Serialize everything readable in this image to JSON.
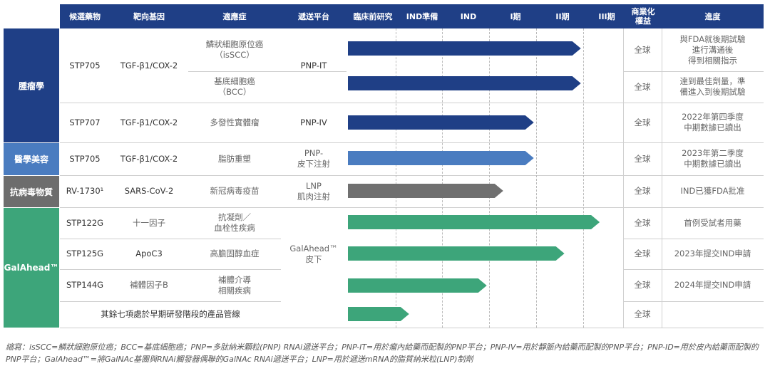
{
  "header": {
    "candidate": "候選藥物",
    "target": "靶向基因",
    "indication": "適應症",
    "platform": "遞送平台",
    "stages": [
      "臨床前研究",
      "IND準備",
      "IND",
      "I期",
      "II期",
      "III期"
    ],
    "rights": "商業化\n權益",
    "progress": "進度"
  },
  "categories": [
    {
      "label": "腫瘤學",
      "color": "#1f3f86"
    },
    {
      "label": "醫學美容",
      "color": "#4a7cc0"
    },
    {
      "label": "抗病毒物質",
      "color": "#6d6d6d"
    },
    {
      "label": "GalAhead™",
      "color": "#3da57a"
    }
  ],
  "rows": [
    {
      "candidate": "STP705",
      "target": "TGF-β1/COX-2",
      "indication": "鱗狀細胞原位癌\n（isSCC）",
      "platform": "PNP-IT",
      "rights": "全球",
      "progress": "與FDA就後期試驗\n進行溝通後\n得到相關指示"
    },
    {
      "candidate": "",
      "target": "",
      "indication": "基底細胞癌\n（BCC）",
      "platform": "",
      "rights": "全球",
      "progress": "達到最佳劑量，準\n備進入到後期試驗"
    },
    {
      "candidate": "STP707",
      "target": "TGF-β1/COX-2",
      "indication": "多發性實體瘤",
      "platform": "PNP-IV",
      "rights": "全球",
      "progress": "2022年第四季度\n中期數據已讀出"
    },
    {
      "candidate": "STP705",
      "target": "TGF-β1/COX-2",
      "indication": "脂肪重塑",
      "platform": "PNP-\n皮下注射",
      "rights": "全球",
      "progress": "2023年第二季度\n中期數據已讀出"
    },
    {
      "candidate": "RV-1730¹",
      "target": "SARS-CoV-2",
      "indication": "新冠病毒疫苗",
      "platform": "LNP\n肌肉注射",
      "rights": "全球",
      "progress": "IND已獲FDA批准"
    },
    {
      "candidate": "STP122G",
      "target": "十一因子",
      "indication": "抗凝劑／\n血栓性疾病",
      "platform": "",
      "rights": "全球",
      "progress": "首例受試者用藥"
    },
    {
      "candidate": "STP125G",
      "target": "ApoC3",
      "indication": "高膽固醇血症",
      "platform": "GalAhead™\n皮下",
      "rights": "全球",
      "progress": "2023年提交IND申請"
    },
    {
      "candidate": "STP144G",
      "target": "補體因子B",
      "indication": "補體介導\n相關疾病",
      "platform": "",
      "rights": "全球",
      "progress": "2024年提交IND申請"
    },
    {
      "candidate": "其餘七項處於早期研發階段的產品管線",
      "target": "",
      "indication": "",
      "platform": "",
      "rights": "全球",
      "progress": ""
    }
  ],
  "chart_data": {
    "type": "bar",
    "orientation": "horizontal",
    "stage_axis": [
      "臨床前研究",
      "IND準備",
      "IND",
      "I期",
      "II期",
      "III期"
    ],
    "stage_colors": [
      "#1f3f86",
      "#1f3f86",
      "#1f3f86",
      "#1f3f86",
      "#4a7cc0",
      "#707070",
      "#3da57a",
      "#3da57a",
      "#3da57a",
      "#3da57a"
    ],
    "series": [
      {
        "values": [
          4.95,
          4.95,
          3.95,
          3.95,
          3.3,
          5.35,
          4.6,
          2.95,
          1.3
        ]
      }
    ],
    "bar_color_by_row": [
      "#1f3f86",
      "#1f3f86",
      "#1f3f86",
      "#4a7cc0",
      "#707070",
      "#3da57a",
      "#3da57a",
      "#3da57a",
      "#3da57a"
    ]
  },
  "footnote": "縮寫：isSCC=鱗狀細胞原位癌；BCC=基底細胞癌；PNP=多肽納米顆粒(PNP) RNAi遞送平台；PNP-IT=用於瘤內給藥而配製的PNP平台；PNP-IV=用於靜脈內給藥而配製的PNP平台；PNP-ID=用於皮內給藥而配製的PNP平台；GalAhead™=將GalNAc基團與RNAi觸發器偶聯的GalNAc RNAi遞送平台；LNP=用於遞送mRNA的脂質納米粒(LNP)制劑"
}
